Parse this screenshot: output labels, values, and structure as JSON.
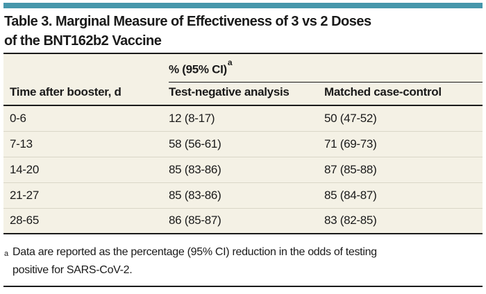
{
  "title": {
    "lines": [
      "Table 3. Marginal Measure of Effectiveness of 3 vs 2 Doses",
      "of the BNT162b2 Vaccine"
    ]
  },
  "table": {
    "spanner": {
      "label": "% (95% CI)",
      "superscript": "a"
    },
    "columns": [
      "Time after booster, d",
      "Test-negative analysis",
      "Matched case-control"
    ],
    "rows": [
      [
        "0-6",
        "12 (8-17)",
        "50 (47-52)"
      ],
      [
        "7-13",
        "58 (56-61)",
        "71 (69-73)"
      ],
      [
        "14-20",
        "85 (83-86)",
        "87 (85-88)"
      ],
      [
        "21-27",
        "85 (83-86)",
        "85 (84-87)"
      ],
      [
        "28-65",
        "86 (85-87)",
        "83 (82-85)"
      ]
    ]
  },
  "footnote": {
    "marker": "a",
    "lines": [
      "Data are reported as the percentage (95% CI) reduction in the odds of testing",
      "positive for SARS-CoV-2."
    ]
  },
  "colors": {
    "accent_teal": "#4697ab",
    "table_background": "#f4f1e5",
    "row_separator": "#d9d6c7",
    "text": "#1a1a1a"
  }
}
